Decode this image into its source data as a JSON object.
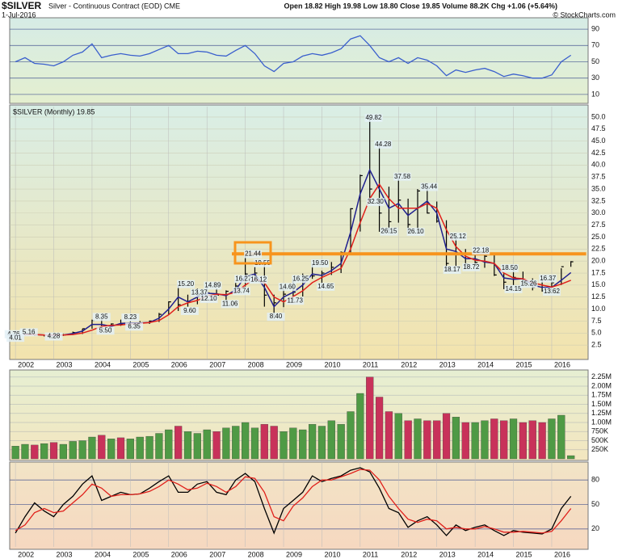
{
  "header": {
    "title": "$SILVER",
    "subtitle": "Silver - Continuous Contract (EOD) CME",
    "date": "1-Jul-2016",
    "quote": "Open 18.82 High 19.98 Low 18.80 Close 19.85 Volume 88.2K Chg +1.06 (+5.64%)",
    "credit": "© StockCharts.com"
  },
  "chart_data": [
    {
      "type": "line",
      "xlim": [
        2001.85,
        2016.95
      ],
      "ylim": [
        0,
        100
      ],
      "yticks": [
        10,
        30,
        50,
        70,
        90
      ],
      "x": [
        2002,
        2002.25,
        2002.5,
        2002.75,
        2003,
        2003.25,
        2003.5,
        2003.75,
        2004,
        2004.25,
        2004.5,
        2004.75,
        2005,
        2005.25,
        2005.5,
        2005.75,
        2006,
        2006.25,
        2006.5,
        2006.75,
        2007,
        2007.25,
        2007.5,
        2007.75,
        2008,
        2008.25,
        2008.5,
        2008.75,
        2009,
        2009.25,
        2009.5,
        2009.75,
        2010,
        2010.25,
        2010.5,
        2010.75,
        2011,
        2011.25,
        2011.5,
        2011.75,
        2012,
        2012.25,
        2012.5,
        2012.75,
        2013,
        2013.25,
        2013.5,
        2013.75,
        2014,
        2014.25,
        2014.5,
        2014.75,
        2015,
        2015.25,
        2015.5,
        2015.75,
        2016,
        2016.25,
        2016.5
      ],
      "series": [
        {
          "color": "#3a5fcd",
          "values": [
            50,
            55,
            48,
            47,
            45,
            50,
            58,
            62,
            72,
            55,
            58,
            60,
            58,
            57,
            60,
            65,
            70,
            60,
            60,
            63,
            62,
            58,
            57,
            64,
            70,
            60,
            45,
            38,
            48,
            50,
            57,
            60,
            58,
            61,
            66,
            78,
            82,
            70,
            55,
            50,
            55,
            48,
            55,
            52,
            45,
            33,
            40,
            37,
            40,
            42,
            38,
            32,
            35,
            33,
            30,
            30,
            34,
            50,
            58
          ]
        }
      ]
    },
    {
      "type": "ohlc",
      "legend": "$SILVER (Monthly) 19.85",
      "xlim": [
        2001.85,
        2016.95
      ],
      "ylim": [
        0,
        51.5
      ],
      "yticks": [
        2.5,
        {
          "value": 5,
          "label": "5.0"
        },
        7.5,
        {
          "value": 10,
          "label": "10.0"
        },
        12.5,
        {
          "value": 15,
          "label": "15.0"
        },
        17.5,
        {
          "value": 20,
          "label": "20.0"
        },
        22.5,
        {
          "value": 25,
          "label": "25.0"
        },
        27.5,
        {
          "value": 30,
          "label": "30.0"
        },
        32.5,
        {
          "value": 35,
          "label": "35.0"
        },
        37.5,
        {
          "value": 40,
          "label": "40.0"
        },
        42.5,
        {
          "value": 45,
          "label": "45.0"
        },
        47.5,
        {
          "value": 50,
          "label": "50.0"
        }
      ],
      "xticks": [
        2002,
        2003,
        2004,
        2005,
        2006,
        2007,
        2008,
        2009,
        2010,
        2011,
        2012,
        2013,
        2014,
        2015,
        2016
      ],
      "color": "#000000",
      "x": [
        2002,
        2002.25,
        2002.5,
        2002.75,
        2003,
        2003.25,
        2003.5,
        2003.75,
        2004,
        2004.25,
        2004.5,
        2004.75,
        2005,
        2005.25,
        2005.5,
        2005.75,
        2006,
        2006.25,
        2006.5,
        2006.75,
        2007,
        2007.25,
        2007.5,
        2007.75,
        2008,
        2008.25,
        2008.5,
        2008.75,
        2009,
        2009.25,
        2009.5,
        2009.75,
        2010,
        2010.25,
        2010.5,
        2010.75,
        2011,
        2011.25,
        2011.5,
        2011.75,
        2012,
        2012.25,
        2012.5,
        2012.75,
        2013,
        2013.25,
        2013.5,
        2013.75,
        2014,
        2014.25,
        2014.5,
        2014.75,
        2015,
        2015.25,
        2015.5,
        2015.75,
        2016,
        2016.25,
        2016.5
      ],
      "high": [
        4.8,
        5.16,
        5.0,
        4.7,
        4.9,
        4.8,
        5.3,
        5.9,
        7.8,
        8.35,
        7.0,
        7.8,
        7.6,
        7.5,
        7.6,
        9.2,
        11.6,
        15.2,
        13.0,
        14.3,
        14.89,
        14.3,
        13.9,
        15.5,
        21.44,
        18.8,
        19.5,
        13.0,
        14.6,
        16.3,
        17.4,
        19.5,
        18.0,
        19.8,
        22.0,
        31.0,
        38.0,
        49.82,
        44.28,
        35.5,
        37.58,
        33.0,
        35.0,
        35.44,
        32.4,
        28.5,
        25.12,
        22.5,
        22.18,
        21.5,
        21.6,
        17.6,
        18.5,
        17.8,
        16.4,
        16.37,
        16.2,
        18.5,
        19.98
      ],
      "low": [
        4.2,
        4.5,
        4.4,
        4.3,
        4.28,
        4.4,
        4.6,
        4.8,
        5.9,
        5.5,
        5.7,
        6.5,
        6.35,
        6.8,
        6.9,
        7.3,
        8.8,
        9.6,
        10.5,
        11.0,
        12.1,
        12.8,
        11.06,
        13.5,
        14.7,
        16.12,
        10.5,
        8.4,
        10.4,
        11.73,
        12.6,
        16.3,
        14.65,
        17.1,
        17.5,
        21.5,
        26.15,
        32.3,
        26.1,
        26.15,
        28.0,
        26.1,
        26.1,
        29.9,
        28.0,
        18.17,
        18.8,
        18.72,
        18.9,
        18.6,
        16.9,
        14.15,
        15.0,
        15.26,
        13.9,
        13.62,
        13.7,
        15.0,
        18.8
      ],
      "close": [
        4.6,
        4.9,
        4.6,
        4.6,
        4.4,
        4.6,
        5.1,
        5.9,
        7.6,
        5.9,
        6.9,
        6.8,
        7.1,
        7.1,
        7.5,
        8.9,
        11.5,
        10.9,
        11.5,
        12.9,
        13.4,
        12.9,
        13.7,
        14.8,
        17.3,
        17.5,
        12.9,
        11.3,
        13.1,
        13.5,
        16.6,
        16.9,
        17.5,
        18.7,
        21.8,
        30.9,
        37.8,
        35.0,
        30.0,
        28.2,
        32.7,
        27.6,
        34.6,
        30.0,
        28.3,
        19.5,
        21.7,
        19.4,
        19.7,
        21.0,
        17.1,
        15.6,
        16.6,
        15.6,
        14.5,
        13.8,
        15.5,
        18.82,
        19.85
      ],
      "moving_averages": [
        {
          "color": "#1f1f8f",
          "values": [
            4.5,
            4.8,
            4.7,
            4.6,
            4.5,
            4.6,
            4.9,
            5.4,
            6.8,
            6.8,
            6.4,
            7.0,
            7.1,
            7.1,
            7.2,
            8.1,
            10.0,
            12.5,
            11.5,
            12.5,
            13.3,
            13.2,
            12.8,
            14.0,
            16.8,
            17.3,
            14.5,
            10.5,
            12.5,
            13.5,
            15.0,
            17.3,
            17.0,
            18.0,
            19.5,
            26.0,
            34.0,
            39.0,
            35.0,
            31.0,
            32.0,
            29.5,
            31.0,
            32.5,
            30.0,
            22.5,
            22.0,
            20.5,
            20.5,
            19.8,
            19.5,
            16.5,
            16.2,
            16.3,
            15.0,
            14.5,
            14.5,
            16.0,
            17.6
          ]
        },
        {
          "color": "#e0201b",
          "values": [
            4.6,
            4.7,
            4.7,
            4.6,
            4.6,
            4.6,
            4.7,
            5.0,
            5.6,
            6.4,
            6.6,
            6.7,
            6.9,
            7.0,
            7.2,
            7.6,
            8.8,
            10.5,
            11.3,
            11.8,
            12.7,
            13.1,
            13.0,
            13.5,
            15.0,
            16.3,
            15.5,
            12.5,
            11.5,
            12.6,
            13.8,
            15.5,
            16.6,
            17.5,
            18.5,
            22.5,
            28.0,
            33.0,
            36.0,
            33.0,
            31.0,
            31.0,
            31.0,
            32.0,
            31.0,
            26.5,
            23.0,
            21.0,
            20.2,
            20.0,
            19.5,
            17.5,
            16.5,
            16.3,
            15.5,
            15.0,
            14.6,
            15.2,
            16.0
          ]
        }
      ],
      "annotations": {
        "x": [
          2001.95,
          2002.0,
          2002.35,
          2003.0,
          2004.25,
          2004.35,
          2005.0,
          2005.1,
          2006.45,
          2006.55,
          2006.8,
          2007.05,
          2007.15,
          2007.6,
          2007.9,
          2007.95,
          2008.2,
          2008.45,
          2008.35,
          2008.8,
          2009.1,
          2009.3,
          2009.45,
          2009.95,
          2010.1,
          2011.35,
          2011.6,
          2011.4,
          2011.75,
          2012.1,
          2012.45,
          2012.8,
          2013.55,
          2013.4,
          2014.15,
          2013.9,
          2014.9,
          2015.0,
          2015.4,
          2015.9,
          2016.0
        ],
        "values": [
          4.76,
          4.01,
          5.16,
          4.28,
          8.35,
          5.5,
          8.23,
          6.35,
          15.2,
          9.6,
          13.37,
          12.1,
          14.89,
          11.06,
          13.74,
          16.27,
          21.44,
          19.55,
          16.12,
          8.4,
          14.6,
          11.73,
          16.25,
          19.5,
          14.65,
          49.82,
          44.28,
          32.3,
          26.15,
          37.58,
          26.1,
          35.44,
          25.12,
          18.17,
          22.18,
          18.72,
          18.5,
          14.15,
          15.26,
          16.37,
          13.62
        ],
        "value_labels": [
          "4.76",
          "4.01",
          "5.16",
          "4.28",
          "8.35",
          "5.50",
          "8.23",
          "6.35",
          "15.20",
          "9.60",
          "13.37",
          "12.10",
          "14.89",
          "11.06",
          "13.74",
          "16.27",
          "21.44",
          "19.55",
          "16.12",
          "8.40",
          "14.60",
          "11.73",
          "16.25",
          "19.50",
          "14.65",
          "49.82",
          "44.28",
          "32.30",
          "26.15",
          "37.58",
          "26.10",
          "35.44",
          "25.12",
          "18.17",
          "22.18",
          "18.72",
          "18.50",
          "14.15",
          "15.26",
          "16.37",
          "13.62"
        ]
      },
      "resistance": {
        "value": 21.5,
        "from": 2007.65,
        "to": 2016.9,
        "color": "#f7941d"
      }
    },
    {
      "type": "bar",
      "xlim": [
        2001.85,
        2016.95
      ],
      "ylim": [
        0,
        2400000
      ],
      "yticks": [
        {
          "value": 250000,
          "label": "250K"
        },
        {
          "value": 500000,
          "label": "500K"
        },
        {
          "value": 750000,
          "label": "750K"
        },
        {
          "value": 1000000,
          "label": "1.00M"
        },
        {
          "value": 1250000,
          "label": "1.25M"
        },
        {
          "value": 1500000,
          "label": "1.50M"
        },
        {
          "value": 1750000,
          "label": "1.75M"
        },
        {
          "value": 2000000,
          "label": "2.00M"
        },
        {
          "value": 2250000,
          "label": "2.25M"
        }
      ],
      "up_color": "#4f9a45",
      "down_color": "#c8325a",
      "values": [
        350000,
        400000,
        380000,
        420000,
        450000,
        400000,
        480000,
        500000,
        600000,
        650000,
        550000,
        580000,
        550000,
        600000,
        620000,
        700000,
        800000,
        900000,
        750000,
        700000,
        800000,
        750000,
        850000,
        900000,
        1000000,
        850000,
        950000,
        900000,
        750000,
        850000,
        800000,
        950000,
        900000,
        1050000,
        950000,
        1300000,
        1800000,
        2250000,
        1700000,
        1300000,
        1250000,
        1050000,
        1100000,
        1050000,
        1050000,
        1250000,
        1150000,
        1000000,
        1000000,
        1050000,
        1100000,
        1050000,
        1100000,
        1000000,
        1050000,
        1000000,
        1100000,
        1200000,
        88200
      ]
    },
    {
      "type": "line",
      "xlim": [
        2001.85,
        2016.95
      ],
      "ylim": [
        0,
        100
      ],
      "yticks": [
        20,
        50,
        80
      ],
      "xticks": [
        2002,
        2003,
        2004,
        2005,
        2006,
        2007,
        2008,
        2009,
        2010,
        2011,
        2012,
        2013,
        2014,
        2015,
        2016
      ],
      "x": [
        2002,
        2002.25,
        2002.5,
        2002.75,
        2003,
        2003.25,
        2003.5,
        2003.75,
        2004,
        2004.25,
        2004.5,
        2004.75,
        2005,
        2005.25,
        2005.5,
        2005.75,
        2006,
        2006.25,
        2006.5,
        2006.75,
        2007,
        2007.25,
        2007.5,
        2007.75,
        2008,
        2008.25,
        2008.5,
        2008.75,
        2009,
        2009.25,
        2009.5,
        2009.75,
        2010,
        2010.25,
        2010.5,
        2010.75,
        2011,
        2011.25,
        2011.5,
        2011.75,
        2012,
        2012.25,
        2012.5,
        2012.75,
        2013,
        2013.25,
        2013.5,
        2013.75,
        2014,
        2014.25,
        2014.5,
        2014.75,
        2015,
        2015.25,
        2015.5,
        2015.75,
        2016,
        2016.25,
        2016.5
      ],
      "series": [
        {
          "color": "#000000",
          "values": [
            15,
            35,
            52,
            42,
            35,
            50,
            60,
            75,
            85,
            55,
            60,
            65,
            62,
            63,
            70,
            78,
            85,
            65,
            65,
            75,
            78,
            65,
            62,
            80,
            88,
            78,
            45,
            15,
            45,
            55,
            65,
            85,
            78,
            82,
            85,
            92,
            95,
            90,
            70,
            45,
            40,
            22,
            30,
            35,
            25,
            12,
            25,
            18,
            22,
            25,
            18,
            12,
            18,
            16,
            15,
            14,
            20,
            45,
            60
          ]
        },
        {
          "color": "#e0201b",
          "values": [
            18,
            25,
            40,
            45,
            40,
            42,
            52,
            62,
            75,
            70,
            60,
            62,
            62,
            63,
            66,
            72,
            80,
            75,
            68,
            70,
            76,
            72,
            65,
            72,
            84,
            82,
            65,
            35,
            30,
            48,
            58,
            72,
            80,
            80,
            84,
            88,
            93,
            92,
            80,
            60,
            45,
            32,
            28,
            32,
            30,
            20,
            22,
            20,
            20,
            23,
            20,
            16,
            16,
            17,
            16,
            15,
            17,
            30,
            45
          ]
        }
      ]
    }
  ]
}
